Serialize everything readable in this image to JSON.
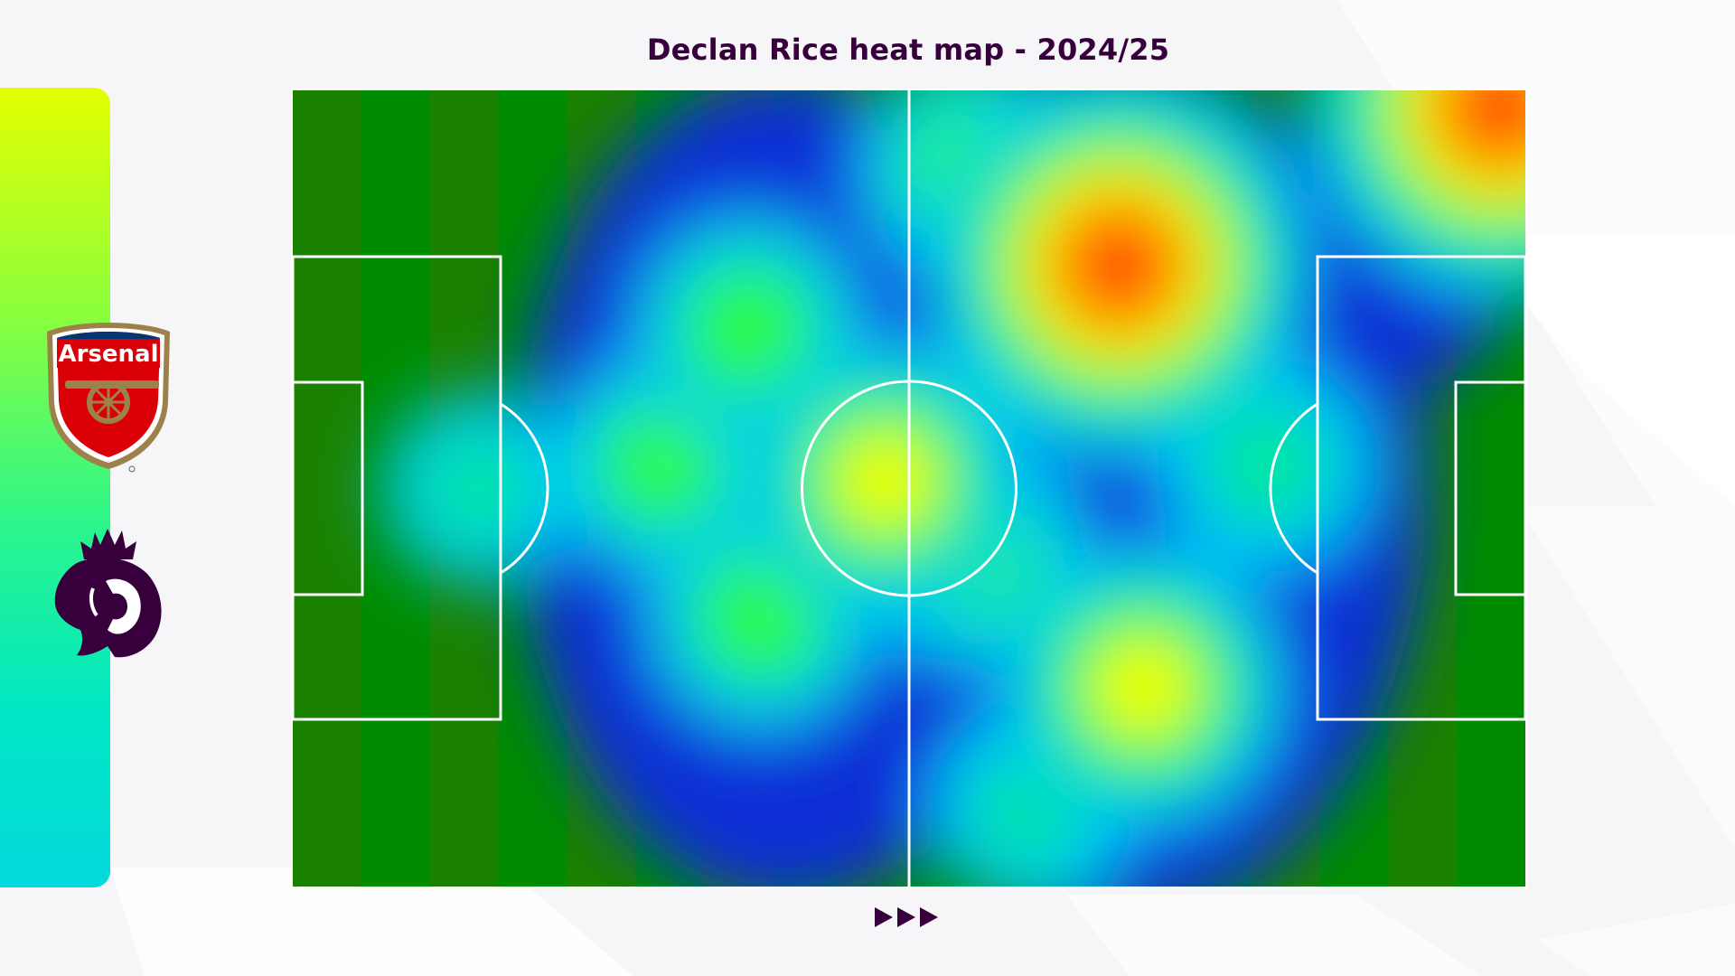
{
  "title": "Declan Rice heat map - 2024/25",
  "club": {
    "name": "Arsenal",
    "crest_text": "Arsenal",
    "icon": "arsenal-crest-icon"
  },
  "league": {
    "icon": "premier-league-lion-icon"
  },
  "navigation": {
    "icon": "triple-arrow-next-icon"
  },
  "colors": {
    "title": "#37003c",
    "pitch_stripe_dark": "#1a8200",
    "pitch_stripe_light": "#008c00",
    "pitch_lines": "#ffffff",
    "heat_scale": [
      "#0a2fd6",
      "#00c4ff",
      "#00e6a0",
      "#33ff00",
      "#ffff00",
      "#ff8c00",
      "#ff3d00"
    ]
  },
  "chart_data": {
    "type": "heatmap",
    "title": "Declan Rice heat map - 2024/25",
    "attack_direction": "left-to-right",
    "xlim": [
      0,
      100
    ],
    "ylim": [
      0,
      100
    ],
    "hotspots": [
      {
        "x": 67,
        "y": 22,
        "intensity": 1.0
      },
      {
        "x": 98,
        "y": 2,
        "intensity": 1.0
      },
      {
        "x": 69,
        "y": 75,
        "intensity": 0.65
      },
      {
        "x": 48,
        "y": 49,
        "intensity": 0.62
      },
      {
        "x": 37,
        "y": 30,
        "intensity": 0.45
      },
      {
        "x": 38,
        "y": 66,
        "intensity": 0.45
      },
      {
        "x": 30,
        "y": 47,
        "intensity": 0.42
      },
      {
        "x": 55,
        "y": 10,
        "intensity": 0.42
      },
      {
        "x": 79,
        "y": 47,
        "intensity": 0.4
      },
      {
        "x": 55,
        "y": 58,
        "intensity": 0.45
      },
      {
        "x": 60,
        "y": 90,
        "intensity": 0.35
      },
      {
        "x": 15,
        "y": 50,
        "intensity": 0.3
      }
    ]
  }
}
